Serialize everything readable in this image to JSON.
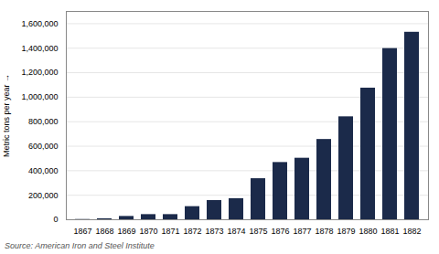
{
  "chart_data": {
    "type": "bar",
    "categories": [
      "1867",
      "1868",
      "1869",
      "1870",
      "1871",
      "1872",
      "1873",
      "1874",
      "1875",
      "1876",
      "1877",
      "1878",
      "1879",
      "1880",
      "1881",
      "1882"
    ],
    "values": [
      2000,
      8000,
      27000,
      42000,
      42000,
      107000,
      157000,
      172000,
      335000,
      467000,
      502000,
      655000,
      840000,
      1074000,
      1397000,
      1530000
    ],
    "color": "#1b2a4a",
    "ylabel": "Metric tons per year",
    "ylim": [
      0,
      1700000
    ],
    "yticks": [
      0,
      {
        "value": 200000,
        "label": "200,000"
      },
      {
        "value": 400000,
        "label": "400,000"
      },
      {
        "value": 600000,
        "label": "600,000"
      },
      {
        "value": 800000,
        "label": "800,000"
      },
      {
        "value": 1000000,
        "label": "1,000,000"
      },
      {
        "value": 1200000,
        "label": "1,200,000"
      },
      {
        "value": 1400000,
        "label": "1,400,000"
      },
      {
        "value": 1600000,
        "label": "1,600,000"
      }
    ],
    "grid": true,
    "source": "Source: American Iron and Steel Institute"
  }
}
